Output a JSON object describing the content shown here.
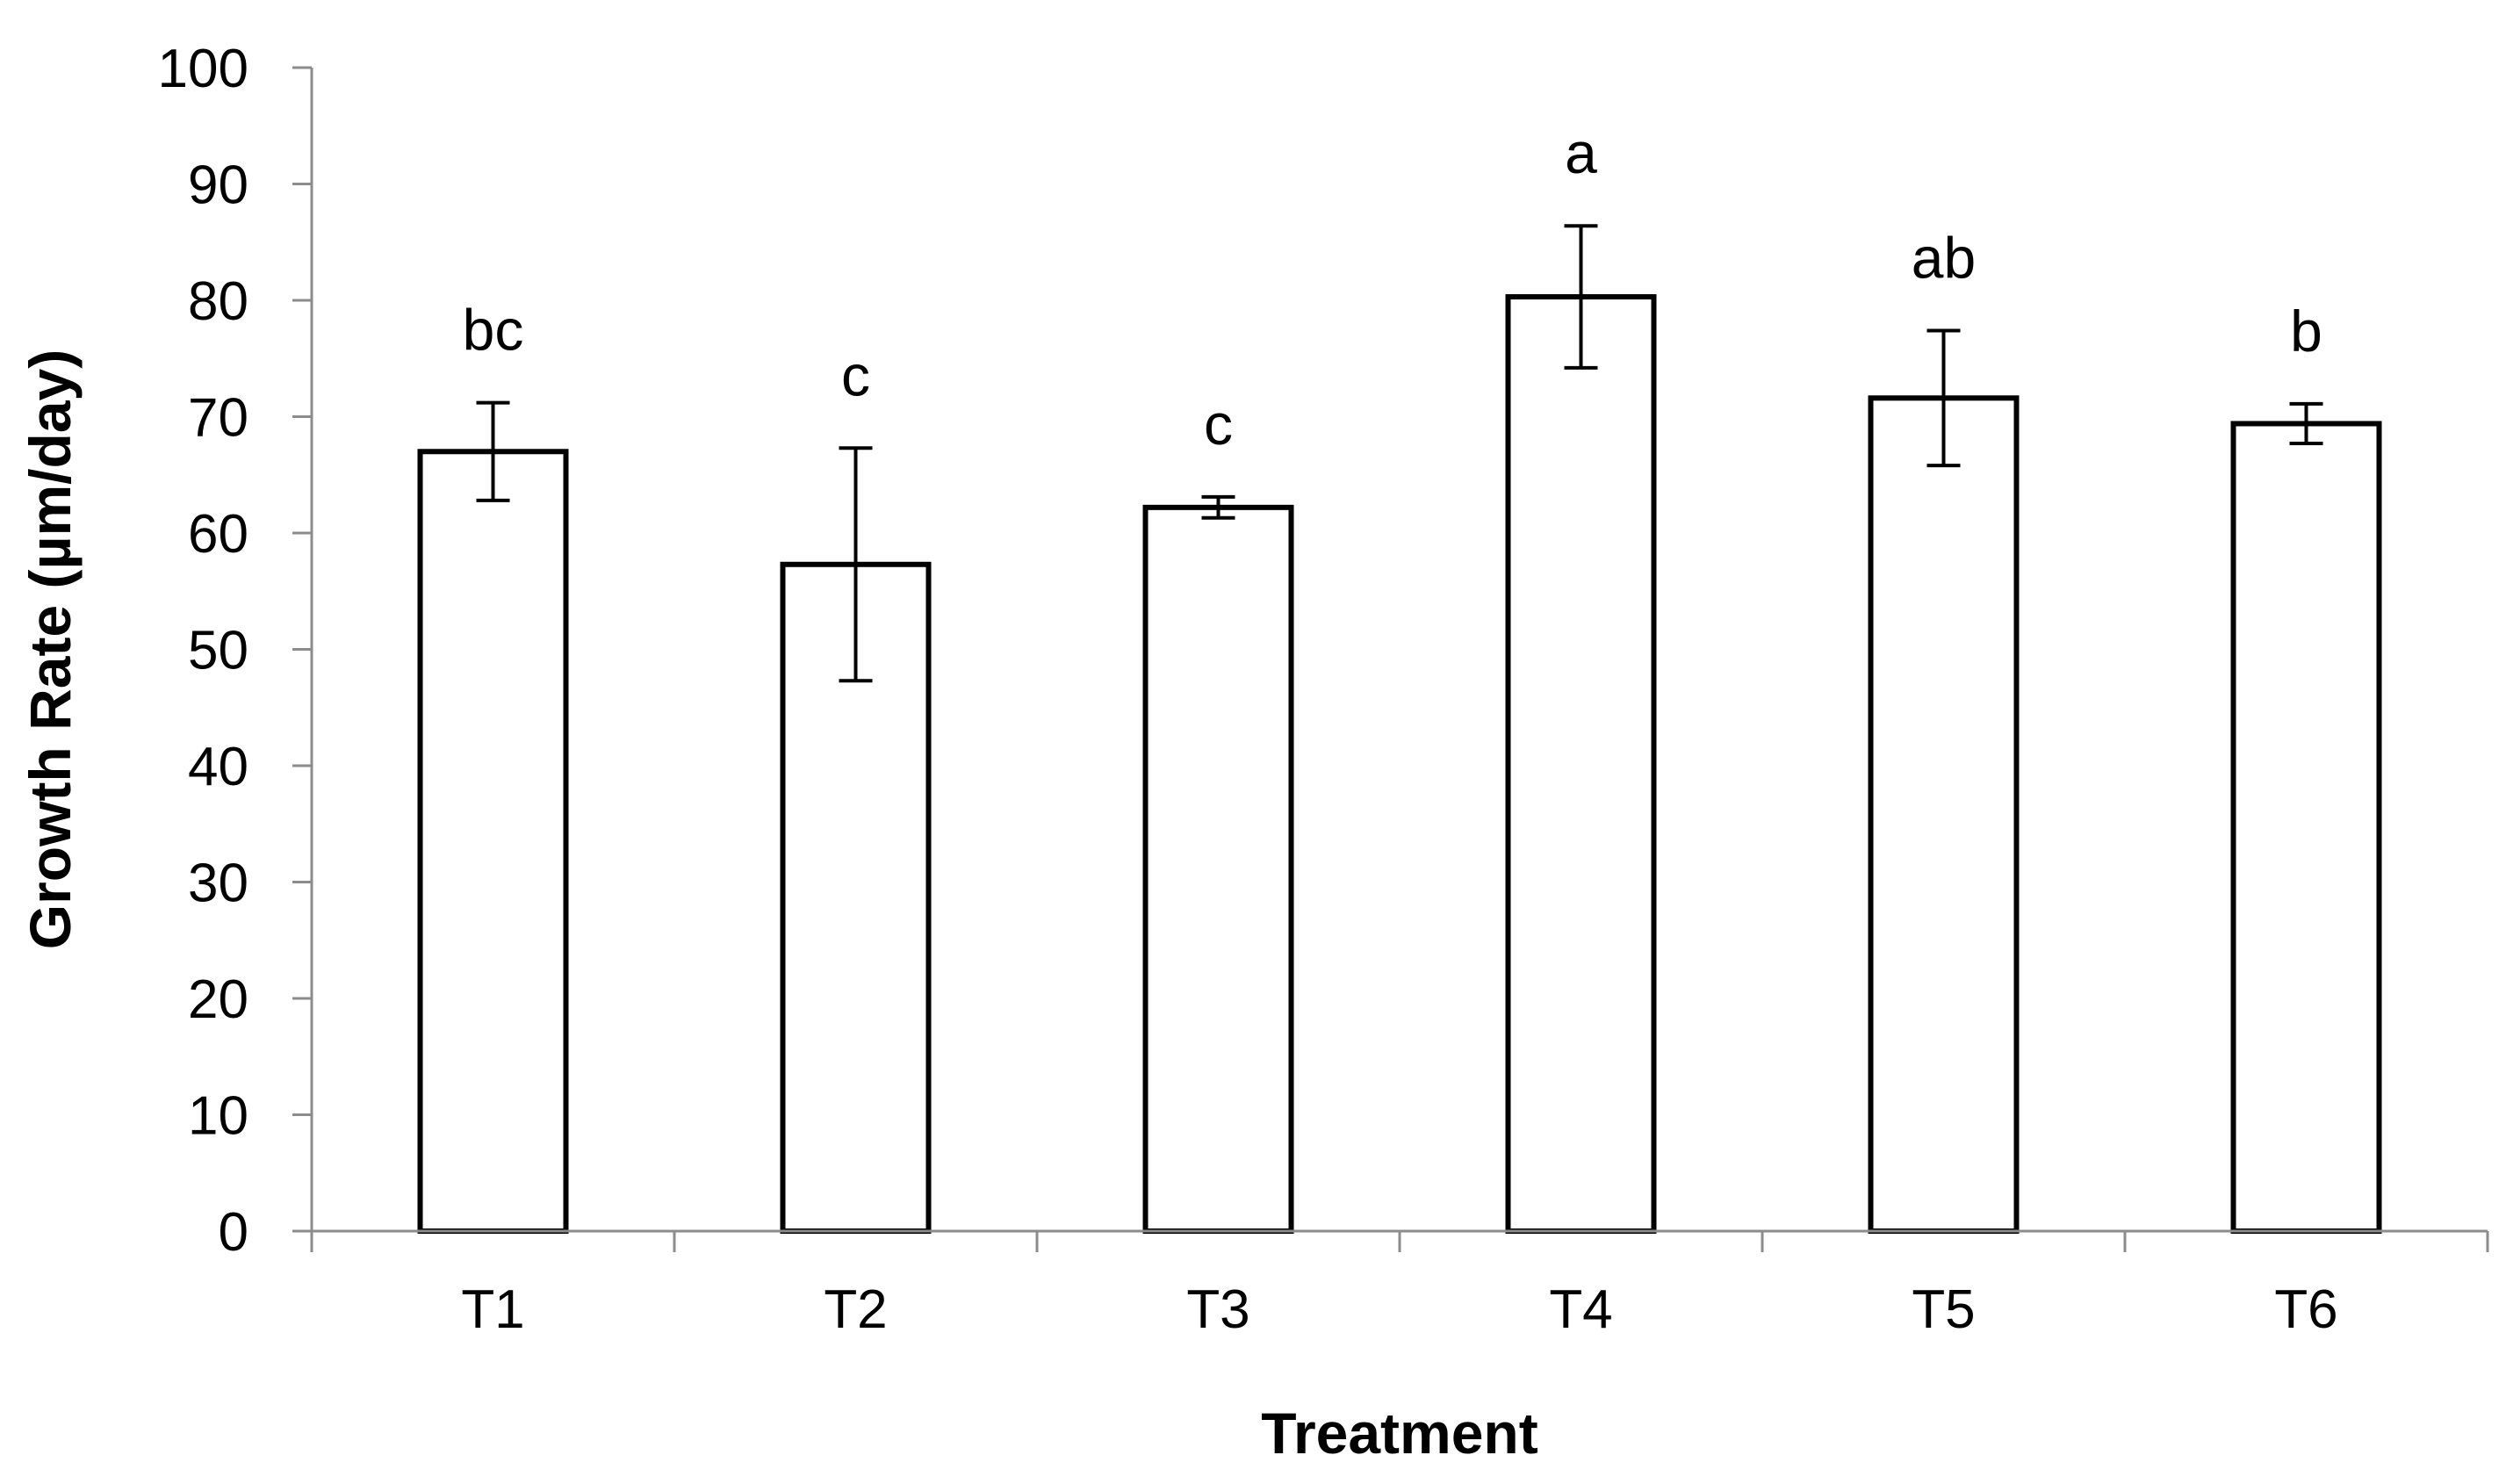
{
  "chart_data": {
    "type": "bar",
    "title": "",
    "xlabel": "Treatment",
    "ylabel": "Growth Rate (µm/day)",
    "categories": [
      "T1",
      "T2",
      "T3",
      "T4",
      "T5",
      "T6"
    ],
    "values": [
      67,
      57.3,
      62.2,
      80.3,
      71.6,
      69.4
    ],
    "errors": [
      4.2,
      10.0,
      0.9,
      6.1,
      5.8,
      1.7
    ],
    "significance_letters": [
      "bc",
      "c",
      "c",
      "a",
      "ab",
      "b"
    ],
    "ylim": [
      0,
      100
    ],
    "yticks": [
      0,
      10,
      20,
      30,
      40,
      50,
      60,
      70,
      80,
      90,
      100
    ],
    "grid": false,
    "colors": {
      "bar_fill": "#ffffff",
      "bar_stroke": "#000000",
      "axis": "#8c8c8c",
      "text": "#000000"
    }
  }
}
